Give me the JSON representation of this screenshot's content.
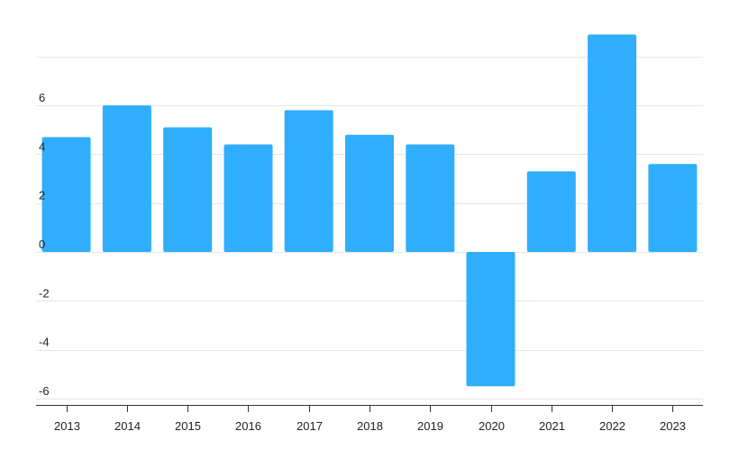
{
  "chart_data": {
    "type": "bar",
    "title": "",
    "xlabel": "",
    "ylabel": "",
    "categories": [
      "2013",
      "2014",
      "2015",
      "2016",
      "2017",
      "2018",
      "2019",
      "2020",
      "2021",
      "2022",
      "2023"
    ],
    "series": [
      {
        "values": [
          4.7,
          6.0,
          5.1,
          4.4,
          5.8,
          4.8,
          4.4,
          -5.5,
          3.3,
          8.9,
          3.6
        ],
        "color": "#2eaefc"
      }
    ],
    "yticks": [
      -6,
      -4,
      -2,
      0,
      2,
      4,
      6
    ],
    "ylim": [
      -6.2,
      8.9
    ],
    "grid": true,
    "legend": "none"
  }
}
